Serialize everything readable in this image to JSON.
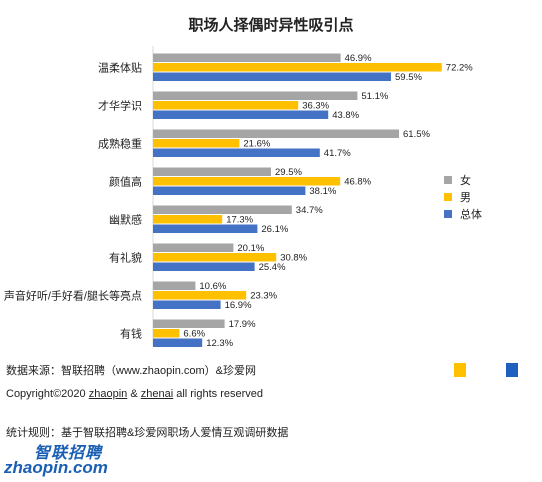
{
  "chart_data": {
    "type": "bar",
    "orientation": "horizontal",
    "title": "职场人择偶时异性吸引点",
    "categories": [
      "温柔体贴",
      "才华学识",
      "成熟稳重",
      "颜值高",
      "幽默感",
      "有礼貌",
      "声音好听/手好看/腿长等亮点",
      "有钱"
    ],
    "series": [
      {
        "name": "女",
        "color": "#a5a5a5",
        "values": [
          46.9,
          51.1,
          61.5,
          29.5,
          34.7,
          20.1,
          10.6,
          17.9
        ],
        "labels": [
          "46.9%",
          "51.1%",
          "61.5%",
          "29.5%",
          "34.7%",
          "20.1%",
          "10.6%",
          "17.9%"
        ]
      },
      {
        "name": "男",
        "color": "#ffc000",
        "values": [
          72.2,
          36.3,
          21.6,
          46.8,
          17.3,
          30.8,
          23.3,
          6.6
        ],
        "labels": [
          "72.2%",
          "36.3%",
          "21.6%",
          "46.8%",
          "17.3%",
          "30.8%",
          "23.3%",
          "6.6%"
        ]
      },
      {
        "name": "总体",
        "color": "#4472c4",
        "values": [
          59.5,
          43.8,
          41.7,
          38.1,
          26.1,
          25.4,
          16.9,
          12.3
        ],
        "labels": [
          "59.5%",
          "43.8%",
          "41.7%",
          "38.1%",
          "26.1%",
          "25.4%",
          "16.9%",
          "12.3%"
        ]
      }
    ],
    "legend": "right",
    "grid": false
  },
  "footer": {
    "source": "数据来源：智联招聘（www.zhaopin.com）&珍爱网",
    "copyright_prefix": "Copyright©2020 ",
    "copyright_zhaopin": "zhaopin",
    "copyright_amp": " & ",
    "copyright_zhenai": "zhenai",
    "copyright_suffix": "  all rights reserved",
    "method": "统计规则：基于智联招聘&珍爱网职场人爱情互观调研数据"
  },
  "logo": {
    "cn": "智联招聘",
    "en": "zhaopin.com"
  },
  "colors": {
    "legend_square_1": "#ffc000",
    "legend_square_2": "#1f5fbf"
  }
}
